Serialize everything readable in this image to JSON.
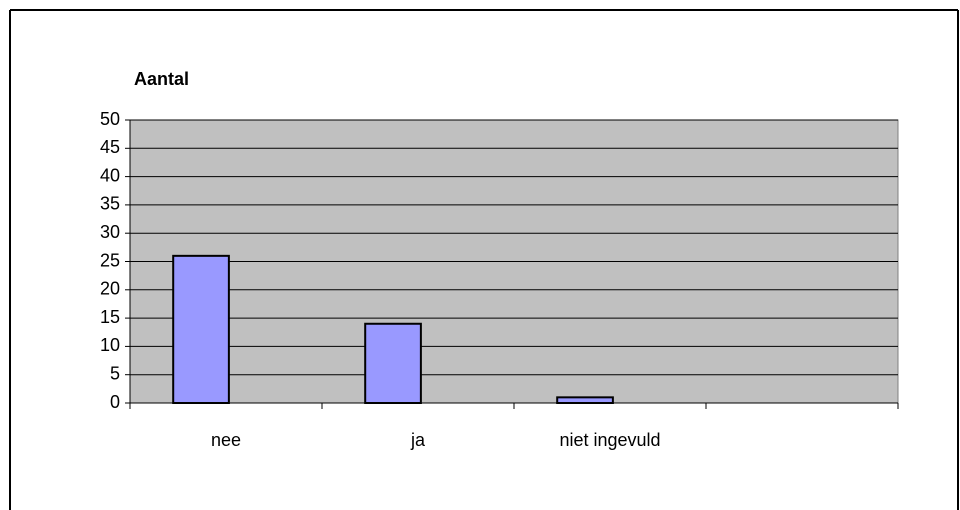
{
  "chart_data": {
    "type": "bar",
    "title": "Aantal",
    "categories": [
      "nee",
      "ja",
      "niet ingevuld",
      null
    ],
    "values": [
      26,
      14,
      1,
      null
    ],
    "color": "#9999ff",
    "ylim": [
      0,
      50
    ],
    "yticks": [
      0,
      5,
      10,
      15,
      20,
      25,
      30,
      35,
      40,
      45,
      50
    ],
    "grid": true
  }
}
